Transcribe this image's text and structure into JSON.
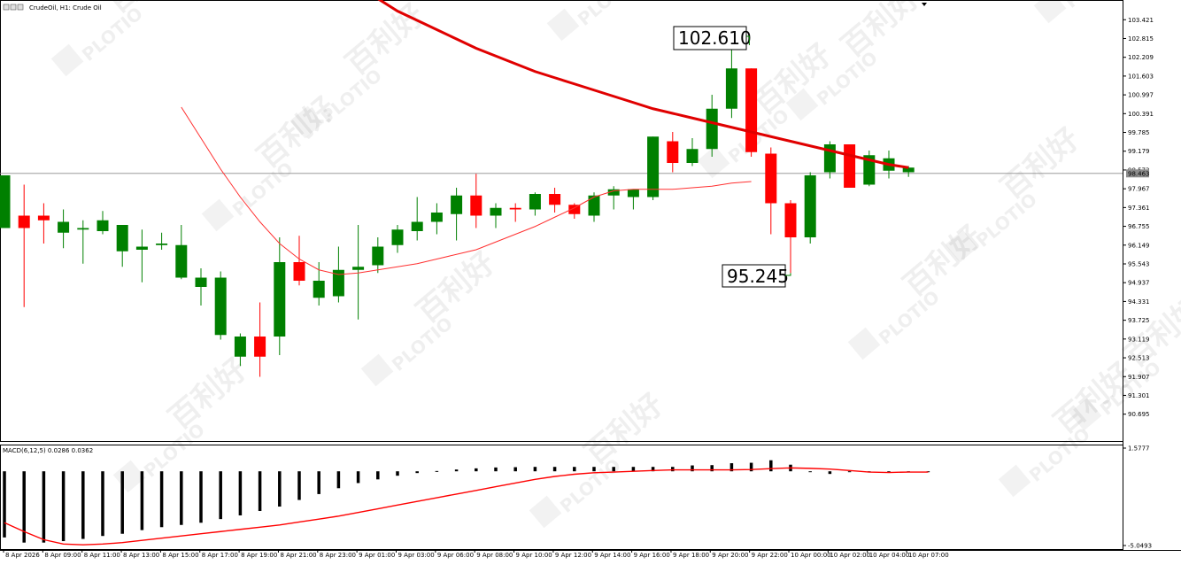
{
  "header": {
    "symbol": "CrudeOil, H1:  Crude Oil"
  },
  "macd": {
    "label": "MACD(6,12,5) 0.0286 0.0362",
    "ylim": [
      -5.0493,
      1.5777
    ],
    "ticks": [
      "1.5777",
      "-5.0493"
    ],
    "hist": [
      -4.5,
      -4.85,
      -4.85,
      -4.75,
      -4.6,
      -4.4,
      -4.25,
      -4.0,
      -3.8,
      -3.65,
      -3.5,
      -3.25,
      -3.0,
      -2.7,
      -2.4,
      -1.95,
      -1.55,
      -1.15,
      -0.8,
      -0.55,
      -0.3,
      -0.12,
      0.02,
      0.12,
      0.2,
      0.26,
      0.28,
      0.3,
      0.3,
      0.3,
      0.3,
      0.3,
      0.3,
      0.3,
      0.3,
      0.4,
      0.42,
      0.55,
      0.58,
      0.75,
      0.45,
      0.0,
      -0.18,
      -0.05,
      -0.08,
      -0.05,
      -0.05,
      -0.05
    ],
    "signal": [
      -3.5,
      -4.1,
      -4.65,
      -4.95,
      -5.0,
      -4.95,
      -4.85,
      -4.7,
      -4.55,
      -4.4,
      -4.25,
      -4.1,
      -3.95,
      -3.8,
      -3.65,
      -3.45,
      -3.25,
      -3.05,
      -2.8,
      -2.55,
      -2.3,
      -2.05,
      -1.8,
      -1.55,
      -1.3,
      -1.05,
      -0.8,
      -0.55,
      -0.35,
      -0.2,
      -0.1,
      -0.05,
      0.0,
      0.05,
      0.1,
      0.1,
      0.1,
      0.1,
      0.12,
      0.18,
      0.23,
      0.2,
      0.15,
      0.05,
      -0.05,
      -0.08,
      -0.05,
      -0.05
    ]
  },
  "price_axis": {
    "ticks": [
      "103.421",
      "102.815",
      "102.209",
      "101.603",
      "100.997",
      "100.391",
      "99.785",
      "99.179",
      "98.573",
      "97.967",
      "97.361",
      "96.755",
      "96.149",
      "95.543",
      "94.937",
      "94.331",
      "93.725",
      "93.119",
      "92.513",
      "91.907",
      "91.301",
      "90.695"
    ],
    "current_price": "98.463",
    "ylim": [
      90.4,
      103.7
    ]
  },
  "time_axis": {
    "labels": [
      "8 Apr 2026",
      "8 Apr 09:00",
      "8 Apr 11:00",
      "8 Apr 13:00",
      "8 Apr 15:00",
      "8 Apr 17:00",
      "8 Apr 19:00",
      "8 Apr 21:00",
      "8 Apr 23:00",
      "9 Apr 01:00",
      "9 Apr 03:00",
      "9 Apr 06:00",
      "9 Apr 08:00",
      "9 Apr 10:00",
      "9 Apr 12:00",
      "9 Apr 14:00",
      "9 Apr 16:00",
      "9 Apr 18:00",
      "9 Apr 20:00",
      "9 Apr 22:00",
      "10 Apr 00:00",
      "10 Apr 02:00",
      "10 Apr 04:00",
      "10 Apr 07:00"
    ]
  },
  "annotations": {
    "high": "102.610",
    "low": "95.245"
  },
  "colors": {
    "bull": "#008000",
    "bear": "#ff0000",
    "ma": "#e00000",
    "grid_line": "#8c8c8c"
  },
  "watermark": {
    "text": "PLOTIO",
    "chinese": "百利好"
  },
  "chart_data": {
    "type": "candlestick",
    "ylim": [
      90.4,
      103.7
    ],
    "current_price": 98.463,
    "high_label": 102.61,
    "low_label": 95.245,
    "candles": [
      {
        "o": 96.7,
        "h": 98.4,
        "l": 96.7,
        "c": 98.4
      },
      {
        "o": 97.1,
        "h": 98.1,
        "l": 94.15,
        "c": 96.7
      },
      {
        "o": 97.1,
        "h": 97.5,
        "l": 96.2,
        "c": 96.95
      },
      {
        "o": 96.55,
        "h": 97.3,
        "l": 96.05,
        "c": 96.9
      },
      {
        "o": 96.65,
        "h": 96.95,
        "l": 95.55,
        "c": 96.7
      },
      {
        "o": 96.6,
        "h": 97.25,
        "l": 96.5,
        "c": 96.95
      },
      {
        "o": 95.95,
        "h": 96.75,
        "l": 95.45,
        "c": 96.8
      },
      {
        "o": 96.0,
        "h": 96.65,
        "l": 94.95,
        "c": 96.1
      },
      {
        "o": 96.15,
        "h": 96.55,
        "l": 96.0,
        "c": 96.2
      },
      {
        "o": 95.1,
        "h": 96.8,
        "l": 95.05,
        "c": 96.15
      },
      {
        "o": 94.8,
        "h": 95.4,
        "l": 94.2,
        "c": 95.1
      },
      {
        "o": 93.25,
        "h": 95.3,
        "l": 93.1,
        "c": 95.1
      },
      {
        "o": 92.55,
        "h": 93.3,
        "l": 92.25,
        "c": 93.2
      },
      {
        "o": 93.2,
        "h": 94.3,
        "l": 91.9,
        "c": 92.55
      },
      {
        "o": 93.2,
        "h": 96.4,
        "l": 92.6,
        "c": 95.6
      },
      {
        "o": 95.6,
        "h": 96.45,
        "l": 94.85,
        "c": 95.0
      },
      {
        "o": 94.45,
        "h": 95.6,
        "l": 94.2,
        "c": 95.0
      },
      {
        "o": 94.5,
        "h": 96.1,
        "l": 94.3,
        "c": 95.35
      },
      {
        "o": 95.35,
        "h": 96.8,
        "l": 93.75,
        "c": 95.45
      },
      {
        "o": 95.5,
        "h": 96.4,
        "l": 95.25,
        "c": 96.1
      },
      {
        "o": 96.15,
        "h": 96.8,
        "l": 95.9,
        "c": 96.65
      },
      {
        "o": 96.6,
        "h": 97.7,
        "l": 96.3,
        "c": 96.9
      },
      {
        "o": 96.9,
        "h": 97.5,
        "l": 96.5,
        "c": 97.2
      },
      {
        "o": 97.15,
        "h": 98.0,
        "l": 96.3,
        "c": 97.75
      },
      {
        "o": 97.75,
        "h": 98.45,
        "l": 96.7,
        "c": 97.1
      },
      {
        "o": 97.1,
        "h": 97.5,
        "l": 96.7,
        "c": 97.35
      },
      {
        "o": 97.35,
        "h": 97.5,
        "l": 96.9,
        "c": 97.3
      },
      {
        "o": 97.3,
        "h": 97.85,
        "l": 97.1,
        "c": 97.8
      },
      {
        "o": 97.8,
        "h": 98.0,
        "l": 97.2,
        "c": 97.45
      },
      {
        "o": 97.45,
        "h": 97.5,
        "l": 97.0,
        "c": 97.15
      },
      {
        "o": 97.1,
        "h": 97.85,
        "l": 96.9,
        "c": 97.75
      },
      {
        "o": 97.75,
        "h": 98.05,
        "l": 97.3,
        "c": 97.95
      },
      {
        "o": 97.7,
        "h": 97.95,
        "l": 97.3,
        "c": 97.95
      },
      {
        "o": 97.7,
        "h": 99.65,
        "l": 97.6,
        "c": 99.65
      },
      {
        "o": 99.5,
        "h": 99.8,
        "l": 98.5,
        "c": 98.8
      },
      {
        "o": 98.8,
        "h": 99.6,
        "l": 98.7,
        "c": 99.25
      },
      {
        "o": 99.25,
        "h": 101.0,
        "l": 99.0,
        "c": 100.55
      },
      {
        "o": 100.55,
        "h": 102.6,
        "l": 100.25,
        "c": 101.85
      },
      {
        "o": 101.85,
        "h": 101.85,
        "l": 99.0,
        "c": 99.15
      },
      {
        "o": 99.1,
        "h": 99.3,
        "l": 96.5,
        "c": 97.5
      },
      {
        "o": 97.5,
        "h": 97.6,
        "l": 95.25,
        "c": 96.4
      },
      {
        "o": 96.4,
        "h": 98.5,
        "l": 96.2,
        "c": 98.4
      },
      {
        "o": 98.5,
        "h": 99.5,
        "l": 98.3,
        "c": 99.4
      },
      {
        "o": 99.4,
        "h": 99.4,
        "l": 98.0,
        "c": 98.0
      },
      {
        "o": 98.1,
        "h": 99.2,
        "l": 98.05,
        "c": 99.05
      },
      {
        "o": 98.55,
        "h": 99.2,
        "l": 98.3,
        "c": 98.95
      },
      {
        "o": 98.5,
        "h": 98.7,
        "l": 98.35,
        "c": 98.65
      }
    ],
    "ma_slow": [
      104.6,
      104.1,
      103.7,
      103.4,
      103.1,
      102.8,
      102.5,
      102.25,
      102.0,
      101.75,
      101.55,
      101.35,
      101.15,
      100.95,
      100.75,
      100.55,
      100.4,
      100.25,
      100.1,
      99.95,
      99.8,
      99.65,
      99.5,
      99.35,
      99.2,
      99.05,
      98.9,
      98.75,
      98.65
    ],
    "ma_slow_start": 18,
    "ma_fast": [
      100.6,
      99.6,
      98.6,
      97.7,
      96.9,
      96.2,
      95.7,
      95.35,
      95.2,
      95.25,
      95.35,
      95.45,
      95.55,
      95.7,
      95.85,
      96.0,
      96.25,
      96.5,
      96.75,
      97.05,
      97.35,
      97.7,
      97.9,
      97.95,
      97.95,
      97.95,
      98.0,
      98.05,
      98.15,
      98.2
    ],
    "ma_fast_start": 9
  }
}
